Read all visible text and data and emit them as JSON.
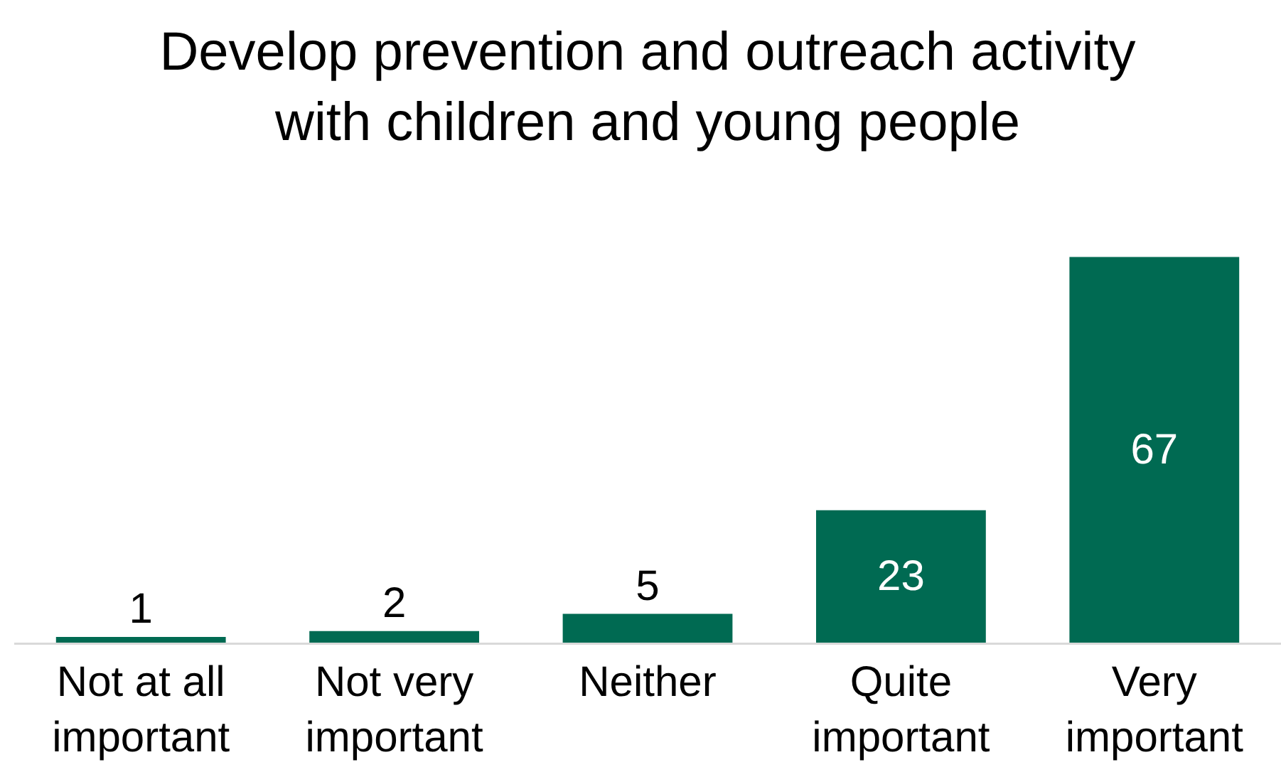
{
  "chart_data": {
    "type": "bar",
    "title": "Develop prevention and outreach activity with children and young people",
    "categories": [
      "Not at all important",
      "Not very important",
      "Neither",
      "Quite important",
      "Very important"
    ],
    "values": [
      1,
      2,
      5,
      23,
      67
    ],
    "color": "#006a52",
    "data_labels": true
  }
}
